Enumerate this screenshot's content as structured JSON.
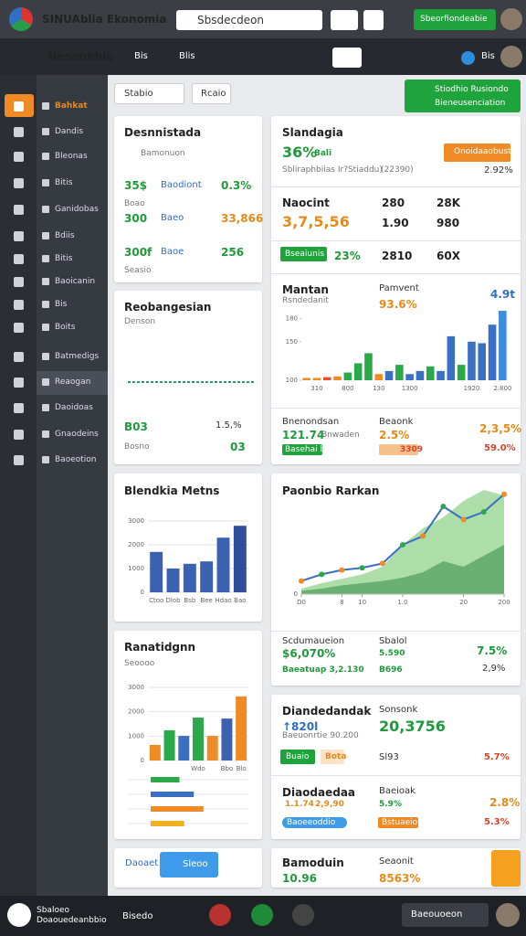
{
  "topbar": {
    "brand": "SINUAblia Ekonomia",
    "search": "Sbsdecdeon",
    "button": "Sbeorfiondeabie"
  },
  "subbar": {
    "title": "Neoonbbio",
    "tabs": [
      "Bis",
      "Blis"
    ],
    "user": "Bis"
  },
  "sidebar": [
    "Bahkat",
    "Dandis",
    "Bleonas",
    "Bitis",
    "Ganidobas",
    "Bdiis",
    "Bitis",
    "Baoicanin",
    "Bis",
    "Boits",
    "Batmedigs",
    "Reaogan",
    "Daoidoas",
    "Gnaodeins",
    "Baoeotion"
  ],
  "filters": {
    "select": "Stabio",
    "button": "Rcaio",
    "banner_title": "Stiodhio Rusiondo",
    "banner_subtitle": "Bieneusenciation"
  },
  "summary": {
    "title": "Desnnistada",
    "subtitle": "Bamonuon",
    "rows": [
      {
        "value": "35$",
        "label": "Baodiont",
        "change": "0.3%",
        "note": "Boao"
      },
      {
        "value": "300",
        "label": "Baeo",
        "change": "33,866"
      },
      {
        "value": "300f",
        "label": "Baoe",
        "change": "256",
        "note": "Seasio"
      }
    ]
  },
  "trend": {
    "title": "Reobangesian",
    "subtitle": "Denson",
    "chart": {
      "type": "line",
      "values": [
        1,
        1,
        1,
        1,
        1,
        1,
        1,
        1,
        1,
        1,
        1,
        1,
        1,
        1,
        1,
        1,
        1,
        1
      ],
      "ylim": [
        0,
        2
      ],
      "color": "#2a9d6e"
    },
    "value": "B03",
    "note": "Bosno",
    "change": "1.5,%",
    "badge": "03"
  },
  "metrics": {
    "title": "Blendkia Metns",
    "chart": {
      "type": "bar",
      "categories": [
        "Ctoo",
        "Dlob",
        "Bsb",
        "Bee",
        "Hdao",
        "Bao"
      ],
      "values": [
        1700,
        1000,
        1200,
        1300,
        2300,
        2800
      ],
      "colors": [
        "#3b62b0",
        "#3b62b0",
        "#3b62b0",
        "#3b62b0",
        "#3b62b0",
        "#2f4f9c"
      ],
      "ylim": [
        0,
        3000
      ],
      "yticks": [
        0,
        1000,
        2000,
        3000
      ],
      "grid": true
    }
  },
  "ranking": {
    "title": "Ranatidgnn",
    "subtitle": "Seoooo",
    "chart": {
      "type": "bar",
      "categories": [
        null,
        null,
        null,
        "Wdo",
        null,
        "Bbo",
        "Blo"
      ],
      "values": [
        640,
        1240,
        1010,
        1760,
        1010,
        1720,
        2630
      ],
      "colors": [
        "#f08a24",
        "#2aa84a",
        "#3b6fc4",
        "#2aa84a",
        "#f08a24",
        "#3b62b0",
        "#f08a24"
      ],
      "ylim": [
        0,
        3000
      ],
      "yticks": [
        0,
        1000,
        2000,
        3000
      ],
      "grid": true
    },
    "progress": [
      {
        "value": 30,
        "color": "#2aa84a"
      },
      {
        "value": 45,
        "color": "#3b6fc4"
      },
      {
        "value": 55,
        "color": "#f08a24"
      },
      {
        "value": 35,
        "color": "#f0b020"
      }
    ]
  },
  "overview": {
    "title": "Slandagia",
    "value": "36%",
    "unit": "Bali",
    "caption": "Sbliraphbiias Ir?Stiaddu)",
    "count": "(22390)",
    "change": "2.92%",
    "button": "Onoidaaobusto",
    "rows": [
      {
        "label": "Naocint",
        "a": "280",
        "b": "28K"
      },
      {
        "label": "3,7,5,56",
        "a": "1.90",
        "b": "980"
      },
      {
        "badge": "Bseaiunis",
        "label": "23%",
        "a": "2810",
        "b": "60X"
      }
    ]
  },
  "monthly": {
    "title": "Mantan",
    "subtitle": "Rsndedanit",
    "label": "Pamvent",
    "label_value": "93.6%",
    "value": "4.9t",
    "chart": {
      "type": "bar",
      "categories": [
        null,
        "310",
        null,
        null,
        "800",
        null,
        null,
        "130",
        null,
        null,
        "1300",
        null,
        null,
        null,
        null,
        null,
        "1920",
        null,
        null,
        "2.800"
      ],
      "values": [
        103,
        103,
        104,
        105,
        110,
        122,
        135,
        108,
        112,
        120,
        108,
        112,
        118,
        112,
        157,
        120,
        150,
        148,
        172,
        190
      ],
      "colors": [
        "#f08a24",
        "#f08a24",
        "#e8502a",
        "#f08a24",
        "#2aa84a",
        "#2aa84a",
        "#2aa84a",
        "#f08a24",
        "#3b6fc4",
        "#2aa84a",
        "#3b6fc4",
        "#3b6fc4",
        "#2aa84a",
        "#3b6fc4",
        "#3b6fc4",
        "#2aa84a",
        "#3b6fc4",
        "#3b6fc4",
        "#3b6fc4",
        "#3b8de0"
      ],
      "ylim": [
        100,
        190
      ],
      "yticks": [
        100,
        150,
        180
      ],
      "grid": false
    }
  },
  "highlights": {
    "left_title": "Bnenondsan",
    "left_value": "121.74",
    "left_unit": "Bnwaden",
    "left_badge": "Basehai bsa",
    "mid_title": "Beaonk",
    "mid_value": "2.5%",
    "mid_badge": "3309",
    "right_value": "2,3,5%",
    "right_badge": "59.0%"
  },
  "market": {
    "title": "Paonbio Rarkan",
    "chart": {
      "type": "line",
      "x": [
        0,
        1,
        2,
        3,
        4,
        5,
        6,
        7,
        8,
        9,
        10
      ],
      "series": [
        {
          "name": "Line",
          "color": "#3b6fc4",
          "values": [
            12,
            18,
            22,
            24,
            28,
            45,
            53,
            80,
            68,
            75,
            91
          ]
        },
        {
          "name": "Area",
          "color": "#9fd89a",
          "values": [
            5,
            10,
            14,
            18,
            25,
            45,
            60,
            70,
            85,
            95,
            90
          ]
        },
        {
          "name": "Base",
          "color": "#5fa86a",
          "values": [
            3,
            5,
            8,
            10,
            12,
            15,
            20,
            30,
            25,
            35,
            45
          ]
        }
      ],
      "marker_color": "#f08a24",
      "xlim": [
        0,
        10
      ],
      "ylim": [
        0,
        100
      ],
      "yticks": [
        0
      ],
      "xticks": [
        {
          "value": 0,
          "label": "D0"
        },
        {
          "value": 2,
          "label": "8"
        },
        {
          "value": 3,
          "label": "10"
        },
        {
          "value": 5,
          "label": "1.0"
        },
        {
          "value": 8,
          "label": "20"
        },
        {
          "value": 10,
          "label": "200"
        }
      ]
    },
    "footer": {
      "title": "Scdumaueion",
      "value": "$6,070%",
      "caption": "Baeatuap 3,2.130",
      "mid_title": "Sbalol",
      "mid_value": "5.590",
      "mid_caption": "B696",
      "right_value": "7.5%",
      "right_caption": "2,9%"
    }
  },
  "dividend": {
    "title": "Diandedandak",
    "value": "↑820l",
    "caption": "Baeuonrtie 90.200",
    "mid_title": "Sonsonk",
    "mid_value": "20,3756",
    "badge1": "Buaio",
    "badge2": "Bota",
    "mid_small": "Sl93",
    "right_value": "5.7%"
  },
  "dividend2": {
    "title": "Diaodaedaa",
    "value": "1.1.74",
    "value2": "2,9,90",
    "mid_title": "Baeioak",
    "mid_value": "5.9%",
    "badge1": "Baoeeoddio",
    "badge2": "Bstuaeio",
    "right1": "2.8%",
    "right2": "5.3%"
  },
  "footer_left": {
    "label": "Daoaet",
    "button": "Sleoo"
  },
  "footer_right": {
    "title": "Bamoduin",
    "value": "10.96",
    "mid_title": "Seaonit",
    "mid_value": "8563%"
  },
  "bottombar": {
    "title": "Sbaloeo",
    "subtitle": "Doaouedeanbbio",
    "status": "Bisedo",
    "select": "Baeouoeon"
  }
}
